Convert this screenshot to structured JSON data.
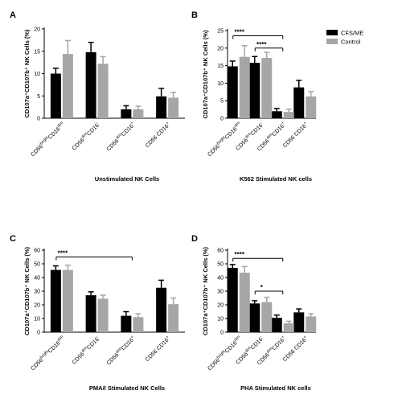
{
  "legend": [
    {
      "label": "CFS/ME",
      "color": "#000000"
    },
    {
      "label": "Control",
      "color": "#a6a6a6"
    }
  ],
  "categories": [
    {
      "main": "CD56",
      "sup1": "bright",
      "mid": "CD16",
      "sup2": "dim"
    },
    {
      "main": "CD56",
      "sup1": "dim",
      "mid": "CD16",
      "sup2": "-"
    },
    {
      "main": "CD56",
      "sup1": "dim",
      "mid": "CD16",
      "sup2": "+"
    },
    {
      "main": "CD56 CD16",
      "sup1": "",
      "mid": "",
      "sup2": "+"
    }
  ],
  "chart_data": [
    {
      "type": "bar",
      "panel": "A",
      "subtitle": "Unstimulated NK Cells",
      "ylabel": "CD107a⁺CD107b⁺ NK Cells (%)",
      "ylim": [
        0,
        20
      ],
      "yticks": [
        0,
        5,
        10,
        15,
        20
      ],
      "series": [
        {
          "name": "CFS/ME",
          "values": [
            10,
            14.8,
            2,
            4.9
          ],
          "errors": [
            1.2,
            2.2,
            0.8,
            1.8
          ]
        },
        {
          "name": "Control",
          "values": [
            14.4,
            12.2,
            2,
            4.6
          ],
          "errors": [
            3,
            1.6,
            0.7,
            1.2
          ]
        }
      ],
      "significance": []
    },
    {
      "type": "bar",
      "panel": "B",
      "subtitle": "K562 Stimulated NK cells",
      "ylabel": "CD107a⁺CD107b⁺ NK Cells (%)",
      "ylim": [
        0,
        25
      ],
      "yticks": [
        0,
        5,
        10,
        15,
        20,
        25
      ],
      "series": [
        {
          "name": "CFS/ME",
          "values": [
            14.8,
            15.8,
            2,
            8.8
          ],
          "errors": [
            1.5,
            1.8,
            0.8,
            2
          ]
        },
        {
          "name": "Control",
          "values": [
            17.5,
            17.2,
            1.8,
            6.2
          ],
          "errors": [
            3.2,
            1.6,
            0.8,
            1.4
          ]
        }
      ],
      "significance": [
        {
          "label": "****",
          "from": 0,
          "to": 2,
          "y": 23.5
        },
        {
          "label": "****",
          "from": 1,
          "to": 2,
          "y": 20
        }
      ]
    },
    {
      "type": "bar",
      "panel": "C",
      "subtitle": "PMA/I Stimulated NK Cells",
      "ylabel": "CD107a⁺CD107b⁺ NK Cells (%)",
      "ylim": [
        0,
        60
      ],
      "yticks": [
        0,
        10,
        20,
        30,
        40,
        50,
        60
      ],
      "series": [
        {
          "name": "CFS/ME",
          "values": [
            45.5,
            27,
            12,
            32.5
          ],
          "errors": [
            3,
            2.5,
            3,
            5.5
          ]
        },
        {
          "name": "Control",
          "values": [
            45.5,
            24.5,
            11,
            20.5
          ],
          "errors": [
            3.5,
            2.5,
            2.5,
            4.5
          ]
        }
      ],
      "significance": [
        {
          "label": "****",
          "from": 0,
          "to": 2,
          "y": 55
        }
      ]
    },
    {
      "type": "bar",
      "panel": "D",
      "subtitle": "PHA Stimulated NK cells",
      "ylabel": "CD107a⁺CD107b⁺ NK Cells (%)",
      "ylim": [
        0,
        60
      ],
      "yticks": [
        0,
        10,
        20,
        30,
        40,
        50,
        60
      ],
      "series": [
        {
          "name": "CFS/ME",
          "values": [
            47,
            21,
            10.5,
            14.5
          ],
          "errors": [
            2.5,
            2,
            2,
            2.5
          ]
        },
        {
          "name": "Control",
          "values": [
            43.5,
            22,
            6.5,
            11.5
          ],
          "errors": [
            4.5,
            3.5,
            1.5,
            2
          ]
        }
      ],
      "significance": [
        {
          "label": "****",
          "from": 0,
          "to": 2,
          "y": 54
        },
        {
          "label": "*",
          "from": 1,
          "to": 2,
          "y": 30
        }
      ]
    }
  ]
}
